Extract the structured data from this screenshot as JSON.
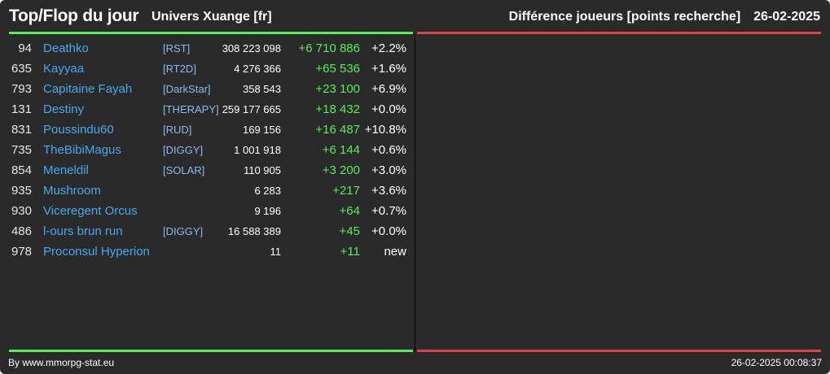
{
  "header": {
    "title": "Top/Flop du jour",
    "universe": "Univers Xuange [fr]",
    "ranking_type": "Différence joueurs [points recherche]",
    "date": "26-02-2025"
  },
  "top": {
    "rows": [
      {
        "rank": "94",
        "player": "Deathko",
        "alliance": "[RST]",
        "points": "308 223 098",
        "diff": "+6 710 886",
        "pct": "+2.2%"
      },
      {
        "rank": "635",
        "player": "Kayyaa",
        "alliance": "[RT2D]",
        "points": "4 276 366",
        "diff": "+65 536",
        "pct": "+1.6%"
      },
      {
        "rank": "793",
        "player": "Capitaine Fayah",
        "alliance": "[DarkStar]",
        "points": "358 543",
        "diff": "+23 100",
        "pct": "+6.9%"
      },
      {
        "rank": "131",
        "player": "Destiny",
        "alliance": "[THERAPY]",
        "points": "259 177 665",
        "diff": "+18 432",
        "pct": "+0.0%"
      },
      {
        "rank": "831",
        "player": "Poussindu60",
        "alliance": "[RUD]",
        "points": "169 156",
        "diff": "+16 487",
        "pct": "+10.8%"
      },
      {
        "rank": "735",
        "player": "TheBibiMagus",
        "alliance": "[DIGGY]",
        "points": "1 001 918",
        "diff": "+6 144",
        "pct": "+0.6%"
      },
      {
        "rank": "854",
        "player": "Meneldil",
        "alliance": "[SOLAR]",
        "points": "110 905",
        "diff": "+3 200",
        "pct": "+3.0%"
      },
      {
        "rank": "935",
        "player": "Mushroom",
        "alliance": "",
        "points": "6 283",
        "diff": "+217",
        "pct": "+3.6%"
      },
      {
        "rank": "930",
        "player": "Viceregent Orcus",
        "alliance": "",
        "points": "9 196",
        "diff": "+64",
        "pct": "+0.7%"
      },
      {
        "rank": "486",
        "player": "l-ours brun run",
        "alliance": "[DIGGY]",
        "points": "16 588 389",
        "diff": "+45",
        "pct": "+0.0%"
      },
      {
        "rank": "978",
        "player": "Proconsul Hyperion",
        "alliance": "",
        "points": "11",
        "diff": "+11",
        "pct": "new"
      }
    ]
  },
  "flop": {
    "rows": []
  },
  "colors": {
    "background": "#2a2a2a",
    "top_accent": "#55ee55",
    "flop_accent": "#dd4444",
    "player_link": "#44aaee",
    "alliance_text": "#88bbee",
    "gain_text": "#55ee55"
  },
  "footer": {
    "credit": "By www.mmorpg-stat.eu",
    "timestamp": "26-02-2025 00:08:37"
  }
}
